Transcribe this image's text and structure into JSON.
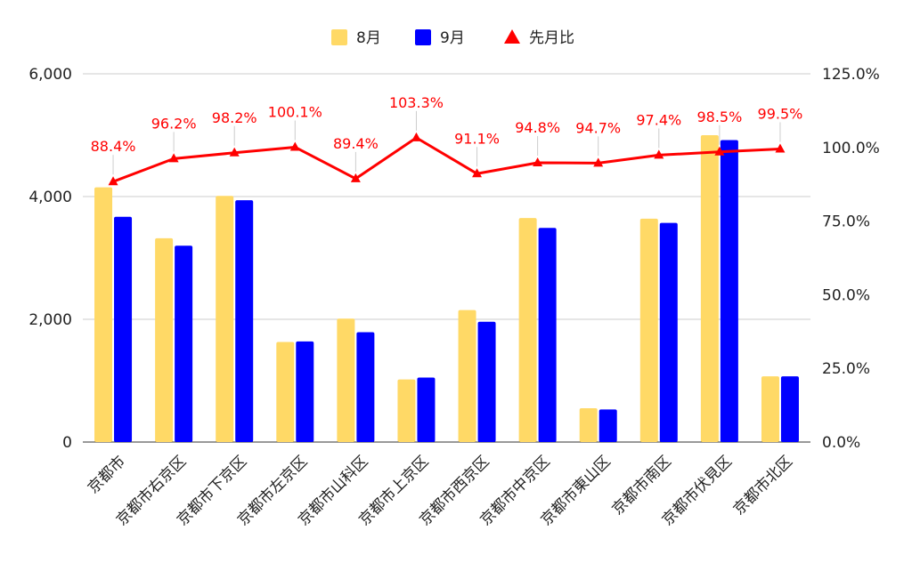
{
  "chart_data": {
    "type": "bar",
    "categories": [
      "京都市",
      "京都市右京区",
      "京都市下京区",
      "京都市左京区",
      "京都市山科区",
      "京都市上京区",
      "京都市西京区",
      "京都市中京区",
      "京都市東山区",
      "京都市南区",
      "京都市伏見区",
      "京都市北区"
    ],
    "series": [
      {
        "name": "8月",
        "type": "bar",
        "axis": "left",
        "color": "#FFD966",
        "values": [
          4150,
          3320,
          4010,
          1630,
          2010,
          1020,
          2150,
          3650,
          550,
          3640,
          5000,
          1070
        ]
      },
      {
        "name": "9月",
        "type": "bar",
        "axis": "left",
        "color": "#0000FF",
        "values": [
          3670,
          3200,
          3940,
          1640,
          1790,
          1050,
          1960,
          3490,
          530,
          3570,
          4920,
          1070
        ]
      },
      {
        "name": "先月比",
        "type": "line",
        "axis": "right",
        "color": "#FF0000",
        "values": [
          88.4,
          96.2,
          98.2,
          100.1,
          89.4,
          103.3,
          91.1,
          94.8,
          94.7,
          97.4,
          98.5,
          99.5
        ],
        "labels": [
          "88.4%",
          "96.2%",
          "98.2%",
          "100.1%",
          "89.4%",
          "103.3%",
          "91.1%",
          "94.8%",
          "94.7%",
          "97.4%",
          "98.5%",
          "99.5%"
        ]
      }
    ],
    "y_left": {
      "min": 0,
      "max": 6000,
      "ticks": [
        0,
        2000,
        4000,
        6000
      ],
      "tick_labels": [
        "0",
        "2,000",
        "4,000",
        "6,000"
      ]
    },
    "y_right": {
      "min": 0,
      "max": 125,
      "ticks": [
        0,
        25,
        50,
        75,
        100,
        125
      ],
      "tick_labels": [
        "0.0%",
        "25.0%",
        "50.0%",
        "75.0%",
        "100.0%",
        "125.0%"
      ]
    },
    "legend_position": "top",
    "grid": true,
    "title": "",
    "xlabel": "",
    "ylabel": ""
  }
}
